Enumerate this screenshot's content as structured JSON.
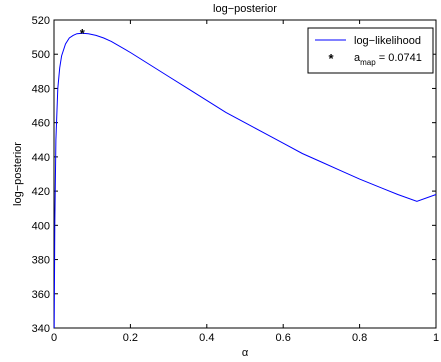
{
  "chart_data": {
    "type": "line",
    "title": "log−posterior",
    "xlabel": "α",
    "ylabel": "log−posterior",
    "xlim": [
      0,
      1
    ],
    "ylim": [
      340,
      520
    ],
    "x_ticks": [
      "0",
      "0.2",
      "0.4",
      "0.6",
      "0.8",
      "1"
    ],
    "y_ticks": [
      "340",
      "360",
      "380",
      "400",
      "420",
      "440",
      "460",
      "480",
      "500",
      "520"
    ],
    "grid": false,
    "legend_position": "top-right",
    "series": [
      {
        "name": "log−likelihood",
        "color": "#0000ff",
        "x": [
          0.0005,
          0.002,
          0.005,
          0.01,
          0.015,
          0.02,
          0.03,
          0.04,
          0.05,
          0.06,
          0.0741,
          0.09,
          0.11,
          0.13,
          0.15,
          0.2,
          0.25,
          0.3,
          0.35,
          0.4,
          0.45,
          0.5,
          0.55,
          0.6,
          0.65,
          0.7,
          0.75,
          0.8,
          0.85,
          0.9,
          0.95,
          1.0
        ],
        "y": [
          340,
          400,
          450,
          480,
          492,
          499,
          506,
          509.5,
          511,
          512,
          512.3,
          512,
          511,
          509.5,
          507.5,
          501,
          494,
          487,
          480,
          473,
          466,
          460,
          454,
          448,
          442,
          437,
          432,
          427,
          422.5,
          418,
          414,
          418
        ]
      }
    ],
    "map_point": {
      "label_prefix": "a",
      "label_sub": "map",
      "label_suffix": " = 0.0741",
      "x": 0.0741,
      "y": 512.3,
      "color": "#ff0000",
      "marker": "*"
    }
  }
}
